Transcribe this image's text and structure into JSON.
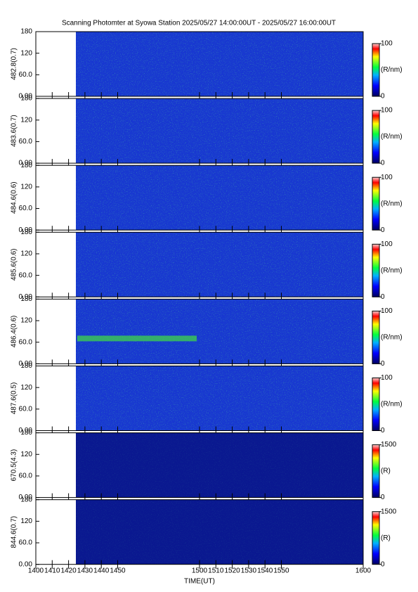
{
  "chart_data": {
    "type": "heatmap",
    "title": "Scanning Photomter at Syowa Station  2025/05/27 14:00:00UT - 2025/05/27 16:00:00UT",
    "xlabel": "TIME(UT)",
    "xlim": [
      1400,
      1600
    ],
    "xticks": [
      1400,
      1410,
      1420,
      1430,
      1440,
      1450,
      1500,
      1510,
      1520,
      1530,
      1540,
      1550,
      1600
    ],
    "panels": [
      {
        "ylabel": "482.8(0.7)",
        "ylim": [
          0,
          180
        ],
        "yticks": [
          {
            "value": 0,
            "label": "0.00"
          },
          {
            "value": 60,
            "label": "60.0"
          },
          120,
          180
        ],
        "colorbar": {
          "label": "(R/nm)",
          "clim": [
            0,
            100
          ],
          "ticks": [
            0,
            100
          ]
        }
      },
      {
        "ylabel": "483.6(0.7)",
        "ylim": [
          0,
          180
        ],
        "yticks": [
          {
            "value": 0,
            "label": "0.00"
          },
          {
            "value": 60,
            "label": "60.0"
          },
          120,
          180
        ],
        "colorbar": {
          "label": "(R/nm)",
          "clim": [
            0,
            100
          ],
          "ticks": [
            0,
            100
          ]
        }
      },
      {
        "ylabel": "484.6(0.6)",
        "ylim": [
          0,
          180
        ],
        "yticks": [
          {
            "value": 0,
            "label": "0.00"
          },
          {
            "value": 60,
            "label": "60.0"
          },
          120,
          180
        ],
        "colorbar": {
          "label": "(R/nm)",
          "clim": [
            0,
            100
          ],
          "ticks": [
            0,
            100
          ]
        }
      },
      {
        "ylabel": "485.6(0.6)",
        "ylim": [
          0,
          180
        ],
        "yticks": [
          {
            "value": 0,
            "label": "0.00"
          },
          {
            "value": 60,
            "label": "60.0"
          },
          120,
          180
        ],
        "colorbar": {
          "label": "(R/nm)",
          "clim": [
            0,
            100
          ],
          "ticks": [
            0,
            100
          ]
        }
      },
      {
        "ylabel": "486.4(0.6)",
        "ylim": [
          0,
          180
        ],
        "yticks": [
          {
            "value": 0,
            "label": "0.00"
          },
          {
            "value": 60,
            "label": "60.0"
          },
          120,
          180
        ],
        "colorbar": {
          "label": "(R/nm)",
          "clim": [
            0,
            100
          ],
          "ticks": [
            0,
            100
          ]
        }
      },
      {
        "ylabel": "487.6(0.5)",
        "ylim": [
          0,
          180
        ],
        "yticks": [
          {
            "value": 0,
            "label": "0.00"
          },
          {
            "value": 60,
            "label": "60.0"
          },
          120,
          180
        ],
        "colorbar": {
          "label": "(R/nm)",
          "clim": [
            0,
            100
          ],
          "ticks": [
            0,
            100
          ]
        }
      },
      {
        "ylabel": "670.5(4.3)",
        "ylim": [
          0,
          180
        ],
        "yticks": [
          {
            "value": 0,
            "label": "0.00"
          },
          {
            "value": 60,
            "label": "60.0"
          },
          120,
          180
        ],
        "colorbar": {
          "label": "(R)",
          "clim": [
            0,
            1500
          ],
          "ticks": [
            0,
            1500
          ]
        }
      },
      {
        "ylabel": "844.6(0.7)",
        "ylim": [
          0,
          180
        ],
        "yticks": [
          {
            "value": 0,
            "label": "0.00"
          },
          {
            "value": 60,
            "label": "60.0"
          },
          120,
          180
        ],
        "colorbar": {
          "label": "(R)",
          "clim": [
            0,
            1500
          ],
          "ticks": [
            0,
            1500
          ]
        }
      }
    ]
  }
}
